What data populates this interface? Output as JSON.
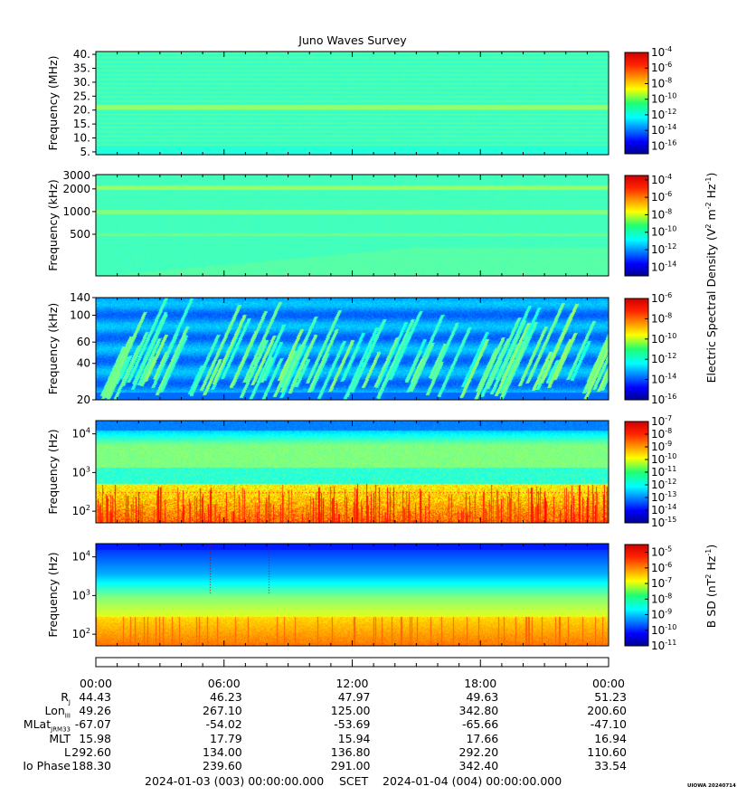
{
  "chart_data": {
    "type": "heatmap",
    "title": "Juno Waves Survey",
    "time_ticks": [
      "00:00",
      "06:00",
      "12:00",
      "18:00",
      "00:00"
    ],
    "panels": [
      {
        "id": "hfr-high",
        "ylabel": "Frequency (MHz)",
        "y_scale": "linear",
        "ylim": [
          4,
          41
        ],
        "yticks": [
          {
            "v": 5,
            "label": "5."
          },
          {
            "v": 10,
            "label": "10."
          },
          {
            "v": 15,
            "label": "15."
          },
          {
            "v": 20,
            "label": "20."
          },
          {
            "v": 25,
            "label": "25."
          },
          {
            "v": 30,
            "label": "30."
          },
          {
            "v": 35,
            "label": "35."
          },
          {
            "v": 40,
            "label": "40."
          }
        ],
        "colorbar": {
          "scale": "log",
          "min_exp": -17,
          "max_exp": -4,
          "ticks": [
            -4,
            -6,
            -8,
            -10,
            -12,
            -14,
            -16
          ]
        },
        "texture": "hfr-high"
      },
      {
        "id": "hfr-low",
        "ylabel": "Frequency (kHz)",
        "y_scale": "log",
        "ylim": [
          140,
          3100
        ],
        "yticks": [
          {
            "v": 500,
            "label": "500"
          },
          {
            "v": 1000,
            "label": "1000"
          },
          {
            "v": 2000,
            "label": "2000"
          },
          {
            "v": 3000,
            "label": "3000"
          }
        ],
        "colorbar": {
          "scale": "log",
          "min_exp": -15,
          "max_exp": -3.5,
          "ticks": [
            -4,
            -6,
            -8,
            -10,
            -12,
            -14
          ]
        },
        "texture": "hfr-low"
      },
      {
        "id": "lfr-high",
        "ylabel": "Frequency (kHz)",
        "y_scale": "log",
        "ylim": [
          20,
          140
        ],
        "yticks": [
          {
            "v": 20,
            "label": "20"
          },
          {
            "v": 40,
            "label": "40"
          },
          {
            "v": 60,
            "label": "60"
          },
          {
            "v": 100,
            "label": "100"
          },
          {
            "v": 140,
            "label": "140"
          }
        ],
        "colorbar": {
          "scale": "log",
          "min_exp": -16,
          "max_exp": -6,
          "ticks": [
            -6,
            -8,
            -10,
            -12,
            -14,
            -16
          ]
        },
        "texture": "lfr-high"
      },
      {
        "id": "lfr-low",
        "ylabel": "Frequency (Hz)",
        "y_scale": "log",
        "ylim": [
          50,
          22000
        ],
        "yticks": [
          {
            "v": 100,
            "label": "10",
            "exp": "2"
          },
          {
            "v": 1000,
            "label": "10",
            "exp": "3"
          },
          {
            "v": 10000,
            "label": "10",
            "exp": "4"
          }
        ],
        "colorbar": {
          "scale": "log",
          "min_exp": -15,
          "max_exp": -7,
          "ticks": [
            -7,
            -8,
            -9,
            -10,
            -11,
            -12,
            -13,
            -14,
            -15
          ]
        },
        "texture": "lfr-low"
      },
      {
        "id": "mag",
        "ylabel": "Frequency (Hz)",
        "y_scale": "log",
        "ylim": [
          50,
          22000
        ],
        "yticks": [
          {
            "v": 100,
            "label": "10",
            "exp": "2"
          },
          {
            "v": 1000,
            "label": "10",
            "exp": "3"
          },
          {
            "v": 10000,
            "label": "10",
            "exp": "4"
          }
        ],
        "colorbar": {
          "scale": "log",
          "min_exp": -11,
          "max_exp": -4.5,
          "ticks": [
            -5,
            -6,
            -7,
            -8,
            -9,
            -10,
            -11
          ]
        },
        "texture": "mag"
      }
    ],
    "colorbar_label_e": "Electric Spectral Density (V",
    "colorbar_label_b": "B SD (nT",
    "ephemeris": [
      {
        "name": "R",
        "sub": "J",
        "values": [
          "44.43",
          "46.23",
          "47.97",
          "49.63",
          "51.23"
        ]
      },
      {
        "name": "Lon",
        "sub": "III",
        "values": [
          "49.26",
          "267.10",
          "125.00",
          "342.80",
          "200.60"
        ]
      },
      {
        "name": "MLat",
        "sub": "JRM33",
        "values": [
          "-67.07",
          "-54.02",
          "-53.69",
          "-65.66",
          "-47.10"
        ]
      },
      {
        "name": "MLT",
        "sub": "",
        "values": [
          "15.98",
          "17.79",
          "15.94",
          "17.66",
          "16.94"
        ]
      },
      {
        "name": "L",
        "sub": "",
        "values": [
          "292.60",
          "134.00",
          "136.80",
          "292.20",
          "110.60"
        ]
      },
      {
        "name": "Io Phase",
        "sub": "",
        "values": [
          "188.30",
          "239.60",
          "291.00",
          "342.40",
          "33.54"
        ]
      }
    ],
    "footer": {
      "start": "2024-01-03 (003) 00:00:00.000",
      "label": "SCET",
      "end": "2024-01-04 (004) 00:00:00.000"
    },
    "credit": "UIOWA 20240714"
  }
}
